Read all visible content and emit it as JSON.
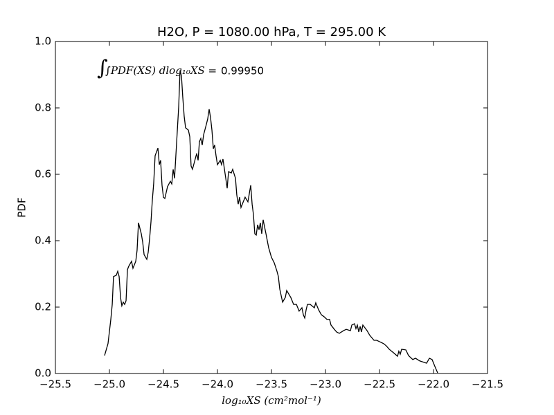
{
  "chart_data": {
    "type": "line",
    "title": "H2O, P = 1080.00 hPa, T = 295.00 K",
    "x_label": "log₁₀XS (cm²mol⁻¹)",
    "y_label": "PDF",
    "annotation": {
      "text": "∫PDF(XS) dlog₁₀XS =",
      "value": "0.99950"
    },
    "xlim": [
      -25.5,
      -21.5
    ],
    "ylim": [
      0,
      1
    ],
    "xticks": [
      {
        "value": -25.5,
        "label": "−25.5"
      },
      {
        "value": -25,
        "label": "−25.0"
      },
      {
        "value": -24.5,
        "label": "−24.5"
      },
      {
        "value": -24,
        "label": "−24.0"
      },
      {
        "value": -23.5,
        "label": "−23.5"
      },
      {
        "value": -23,
        "label": "−23.0"
      },
      {
        "value": -22.5,
        "label": "−22.5"
      },
      {
        "value": -22,
        "label": "−22.0"
      },
      {
        "value": -21.5,
        "label": "−21.5"
      }
    ],
    "yticks": [
      {
        "value": 0,
        "label": "0.0"
      },
      0.2,
      0.4,
      0.6,
      0.8,
      {
        "value": 1,
        "label": "1.0"
      }
    ],
    "grid": false,
    "series": [
      {
        "color": "#000000",
        "x": [
          -25.045,
          -25.013,
          -24.987,
          -24.974,
          -24.962,
          -24.936,
          -24.923,
          -24.91,
          -24.897,
          -24.885,
          -24.872,
          -24.859,
          -24.846,
          -24.833,
          -24.821,
          -24.795,
          -24.782,
          -24.756,
          -24.744,
          -24.731,
          -24.705,
          -24.692,
          -24.679,
          -24.654,
          -24.641,
          -24.628,
          -24.615,
          -24.603,
          -24.59,
          -24.577,
          -24.551,
          -24.538,
          -24.526,
          -24.513,
          -24.5,
          -24.487,
          -24.462,
          -24.436,
          -24.423,
          -24.41,
          -24.397,
          -24.385,
          -24.372,
          -24.359,
          -24.346,
          -24.333,
          -24.321,
          -24.308,
          -24.295,
          -24.269,
          -24.256,
          -24.244,
          -24.231,
          -24.192,
          -24.179,
          -24.167,
          -24.154,
          -24.141,
          -24.128,
          -24.103,
          -24.09,
          -24.077,
          -24.064,
          -24.051,
          -24.038,
          -24.026,
          -24.013,
          -24.0,
          -23.974,
          -23.962,
          -23.949,
          -23.923,
          -23.91,
          -23.897,
          -23.872,
          -23.859,
          -23.833,
          -23.821,
          -23.808,
          -23.795,
          -23.782,
          -23.744,
          -23.718,
          -23.692,
          -23.679,
          -23.667,
          -23.654,
          -23.641,
          -23.628,
          -23.615,
          -23.603,
          -23.59,
          -23.577,
          -23.551,
          -23.526,
          -23.5,
          -23.474,
          -23.449,
          -23.436,
          -23.423,
          -23.397,
          -23.372,
          -23.359,
          -23.321,
          -23.295,
          -23.269,
          -23.244,
          -23.218,
          -23.205,
          -23.192,
          -23.179,
          -23.167,
          -23.141,
          -23.103,
          -23.09,
          -23.064,
          -23.038,
          -23.013,
          -22.987,
          -22.962,
          -22.949,
          -22.923,
          -22.897,
          -22.872,
          -22.833,
          -22.808,
          -22.769,
          -22.756,
          -22.731,
          -22.718,
          -22.705,
          -22.692,
          -22.679,
          -22.667,
          -22.654,
          -22.615,
          -22.59,
          -22.551,
          -22.526,
          -22.5,
          -22.462,
          -22.436,
          -22.41,
          -22.372,
          -22.333,
          -22.321,
          -22.308,
          -22.295,
          -22.256,
          -22.231,
          -22.192,
          -22.167,
          -22.128,
          -22.064,
          -22.038,
          -22.013,
          -21.987,
          -21.962
        ],
        "values": [
          0.054,
          0.09,
          0.163,
          0.208,
          0.292,
          0.296,
          0.308,
          0.292,
          0.229,
          0.204,
          0.215,
          0.208,
          0.219,
          0.313,
          0.323,
          0.338,
          0.317,
          0.338,
          0.371,
          0.454,
          0.421,
          0.396,
          0.358,
          0.344,
          0.365,
          0.406,
          0.458,
          0.521,
          0.573,
          0.656,
          0.679,
          0.629,
          0.642,
          0.567,
          0.531,
          0.527,
          0.563,
          0.579,
          0.571,
          0.615,
          0.588,
          0.656,
          0.729,
          0.802,
          0.913,
          0.896,
          0.833,
          0.775,
          0.74,
          0.733,
          0.713,
          0.625,
          0.615,
          0.663,
          0.642,
          0.698,
          0.708,
          0.688,
          0.719,
          0.75,
          0.767,
          0.796,
          0.771,
          0.733,
          0.677,
          0.688,
          0.656,
          0.629,
          0.642,
          0.629,
          0.646,
          0.588,
          0.558,
          0.608,
          0.604,
          0.615,
          0.588,
          0.538,
          0.51,
          0.531,
          0.5,
          0.531,
          0.517,
          0.567,
          0.51,
          0.479,
          0.421,
          0.417,
          0.448,
          0.433,
          0.454,
          0.421,
          0.463,
          0.421,
          0.379,
          0.35,
          0.333,
          0.308,
          0.292,
          0.254,
          0.215,
          0.229,
          0.25,
          0.229,
          0.208,
          0.208,
          0.188,
          0.198,
          0.177,
          0.167,
          0.192,
          0.208,
          0.208,
          0.198,
          0.213,
          0.192,
          0.177,
          0.171,
          0.163,
          0.163,
          0.146,
          0.135,
          0.125,
          0.121,
          0.129,
          0.133,
          0.129,
          0.146,
          0.15,
          0.135,
          0.146,
          0.125,
          0.142,
          0.125,
          0.146,
          0.129,
          0.115,
          0.1,
          0.1,
          0.096,
          0.09,
          0.083,
          0.073,
          0.063,
          0.052,
          0.067,
          0.058,
          0.073,
          0.071,
          0.054,
          0.042,
          0.046,
          0.038,
          0.031,
          0.046,
          0.042,
          0.021,
          0.002
        ]
      }
    ]
  }
}
